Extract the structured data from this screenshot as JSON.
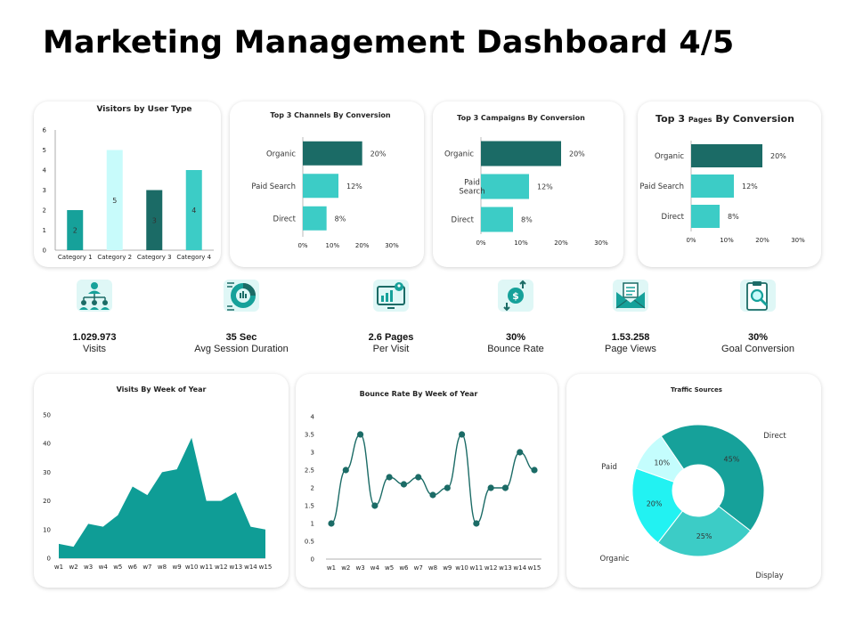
{
  "title": "Marketing Management Dashboard 4/5",
  "colors": {
    "dark_teal": "#1b6b66",
    "teal": "#3cccc6",
    "light": "#c8fbfb",
    "area": "#0f9d96",
    "line": "#1b6b66",
    "donut": [
      "#16a19a",
      "#3cccc6",
      "#22f2f2",
      "#c4fdfd"
    ]
  },
  "kpis": [
    {
      "icon": "network-users-icon",
      "value": "1.029.973",
      "label": "Visits"
    },
    {
      "icon": "pie-chart-icon",
      "value": "35 Sec",
      "label": "Avg Session Duration"
    },
    {
      "icon": "monitor-analytics-icon",
      "value": "2.6 Pages",
      "label": "Per Visit"
    },
    {
      "icon": "dollar-exchange-icon",
      "value": "30%",
      "label": "Bounce Rate"
    },
    {
      "icon": "envelope-icon",
      "value": "1.53.258",
      "label": "Page Views"
    },
    {
      "icon": "clipboard-search-icon",
      "value": "30%",
      "label": "Goal Conversion"
    }
  ],
  "chart_data": [
    {
      "id": "visitors",
      "type": "bar",
      "title": "Visitors by User Type",
      "categories": [
        "Category 1",
        "Category 2",
        "Category 3",
        "Category 4"
      ],
      "values": [
        2,
        5,
        3,
        4
      ],
      "bar_colors": [
        "#16a19a",
        "#c8fbfb",
        "#1b6b66",
        "#3cccc6"
      ],
      "ylim": [
        0,
        6
      ],
      "yticks": [
        0,
        1,
        2,
        3,
        4,
        5,
        6
      ],
      "grid": false
    },
    {
      "id": "channels",
      "type": "bar",
      "orientation": "horizontal",
      "title_parts": [
        "Top 3 Channels  By Conversion"
      ],
      "categories": [
        "Organic",
        "Paid Search",
        "Direct"
      ],
      "values": [
        20,
        12,
        8
      ],
      "value_labels": [
        "20%",
        "12%",
        "8%"
      ],
      "xlim": [
        0,
        30
      ],
      "xticks": [
        "0%",
        "10%",
        "20%",
        "30%"
      ]
    },
    {
      "id": "campaigns",
      "type": "bar",
      "orientation": "horizontal",
      "title_parts": [
        "Top 3 Campaigns  By Conversion"
      ],
      "categories": [
        "Organic",
        "Paid Search",
        "Direct"
      ],
      "values": [
        20,
        12,
        8
      ],
      "value_labels": [
        "20%",
        "12%",
        "8%"
      ],
      "xlim": [
        0,
        30
      ],
      "xticks": [
        "0%",
        "10%",
        "20%",
        "30%"
      ]
    },
    {
      "id": "pages",
      "type": "bar",
      "orientation": "horizontal",
      "title_parts": [
        "Top 3 ",
        "Pages",
        " By Conversion"
      ],
      "categories": [
        "Organic",
        "Paid Search",
        "Direct"
      ],
      "values": [
        20,
        12,
        8
      ],
      "value_labels": [
        "20%",
        "12%",
        "8%"
      ],
      "xlim": [
        0,
        30
      ],
      "xticks": [
        "0%",
        "10%",
        "20%",
        "30%"
      ]
    },
    {
      "id": "visits_week",
      "type": "area",
      "title": "Visits By Week of Year",
      "x": [
        "w1",
        "w2",
        "w3",
        "w4",
        "w5",
        "w6",
        "w7",
        "w8",
        "w9",
        "w10",
        "w11",
        "w12",
        "w13",
        "w14",
        "w15"
      ],
      "values": [
        5,
        4,
        12,
        11,
        15,
        25,
        22,
        30,
        31,
        42,
        20,
        20,
        23,
        11,
        10
      ],
      "ylim": [
        0,
        50
      ],
      "yticks": [
        0,
        10,
        20,
        30,
        40,
        50
      ]
    },
    {
      "id": "bounce_week",
      "type": "line",
      "title": "Bounce Rate By Week of Year",
      "x": [
        "w1",
        "w2",
        "w3",
        "w4",
        "w5",
        "w6",
        "w7",
        "w8",
        "w9",
        "w10",
        "w11",
        "w12",
        "w13",
        "w14",
        "w15"
      ],
      "values": [
        1,
        2.5,
        3.5,
        1.5,
        2.3,
        2.1,
        2.3,
        1.8,
        2,
        3.5,
        1,
        2,
        2,
        3,
        2.5
      ],
      "ylim": [
        0,
        4
      ],
      "yticks": [
        "0",
        "0.5",
        "1",
        "1.5",
        "2",
        "2.5",
        "3",
        "3.5",
        "4"
      ]
    },
    {
      "id": "traffic",
      "type": "pie",
      "donut": true,
      "title": "Traffic Sources",
      "labels": [
        "Direct",
        "Display",
        "Organic",
        "Paid"
      ],
      "values": [
        45,
        25,
        20,
        10
      ],
      "value_labels": [
        "45%",
        "25%",
        "20%",
        "10%"
      ]
    }
  ]
}
